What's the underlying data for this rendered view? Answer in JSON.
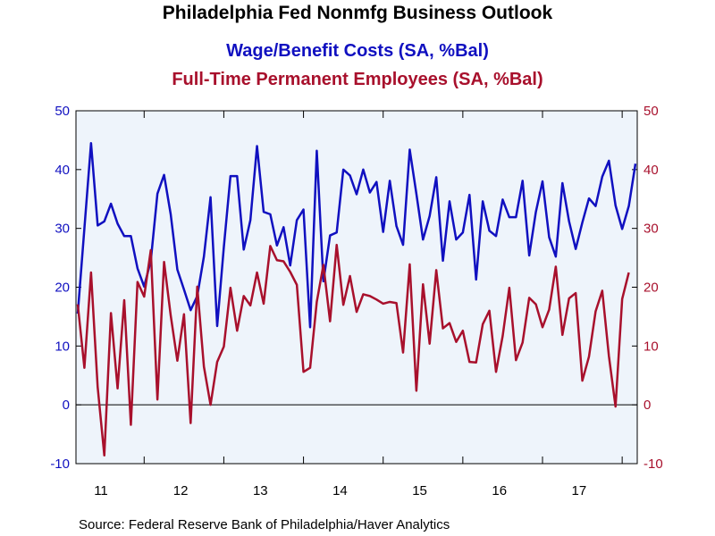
{
  "chart_data": {
    "type": "line",
    "title": "Philadelphia Fed Nonmfg Business Outlook",
    "subtitles": [
      "Wage/Benefit Costs (SA, %Bal)",
      "Full-Time Permanent Employees (SA, %Bal)"
    ],
    "source": "Source:  Federal Reserve Bank of Philadelphia/Haver Analytics",
    "ylim": [
      -10,
      50
    ],
    "y_ticks": [
      "50",
      "40",
      "30",
      "20",
      "10",
      "0",
      "-10"
    ],
    "y_tick_values": [
      50,
      40,
      30,
      20,
      10,
      0,
      -10
    ],
    "x_ticks": [
      "11",
      "12",
      "13",
      "14",
      "15",
      "16",
      "17"
    ],
    "x_start": "2011-03",
    "grid": false,
    "zero_line": true,
    "colors": {
      "background": "#eef4fb",
      "wage": "#1010c0",
      "employees": "#a8102c"
    },
    "series": [
      {
        "name": "Wage/Benefit Costs (SA, %Bal)",
        "color": "#1010c0",
        "axis": "left",
        "values": [
          15.5,
          30.0,
          44.5,
          30.5,
          31.2,
          34.2,
          30.8,
          28.7,
          28.7,
          23.2,
          20.1,
          24.5,
          35.9,
          39.1,
          32.4,
          23.0,
          19.6,
          16.1,
          18.5,
          25.2,
          35.3,
          13.4,
          26.8,
          38.9,
          38.9,
          26.4,
          31.4,
          44.0,
          32.8,
          32.4,
          27.1,
          30.2,
          23.7,
          31.4,
          33.2,
          13.2,
          43.2,
          21.0,
          28.8,
          29.3,
          40.0,
          39.0,
          35.8,
          40.0,
          36.1,
          37.9,
          29.4,
          38.1,
          30.4,
          27.2,
          43.4,
          35.9,
          28.1,
          32.1,
          38.7,
          24.5,
          34.6,
          28.1,
          29.3,
          35.7,
          21.3,
          34.6,
          29.6,
          28.7,
          34.9,
          31.9,
          31.9,
          38.1,
          25.4,
          32.8,
          38.0,
          28.5,
          25.2,
          37.7,
          31.2,
          26.5,
          31.0,
          35.1,
          33.8,
          38.8,
          41.5,
          33.9,
          29.9,
          33.8,
          41.0
        ]
      },
      {
        "name": "Full-Time Permanent Employees (SA, %Bal)",
        "color": "#a8102c",
        "axis": "right",
        "values": [
          17.1,
          6.3,
          22.5,
          3.0,
          -8.6,
          15.6,
          2.8,
          17.8,
          -3.4,
          20.9,
          18.4,
          26.3,
          0.9,
          24.3,
          15.2,
          7.5,
          15.4,
          -3.1,
          20.1,
          6.5,
          0.0,
          7.3,
          9.9,
          19.9,
          12.6,
          18.5,
          16.9,
          22.5,
          17.2,
          27.0,
          24.6,
          24.4,
          22.6,
          20.4,
          5.6,
          6.3,
          17.5,
          23.8,
          14.2,
          27.2,
          17.0,
          21.9,
          15.8,
          18.8,
          18.5,
          17.9,
          17.2,
          17.5,
          17.3,
          8.9,
          23.9,
          2.4,
          20.5,
          10.4,
          22.9,
          13.0,
          13.9,
          10.7,
          12.6,
          7.3,
          7.2,
          13.7,
          16.0,
          5.6,
          11.7,
          19.9,
          7.6,
          10.6,
          18.2,
          17.1,
          13.2,
          16.2,
          23.5,
          11.9,
          18.1,
          19.0,
          4.1,
          8.2,
          15.9,
          19.4,
          8.3,
          -0.3,
          18.0,
          22.5
        ]
      }
    ]
  }
}
